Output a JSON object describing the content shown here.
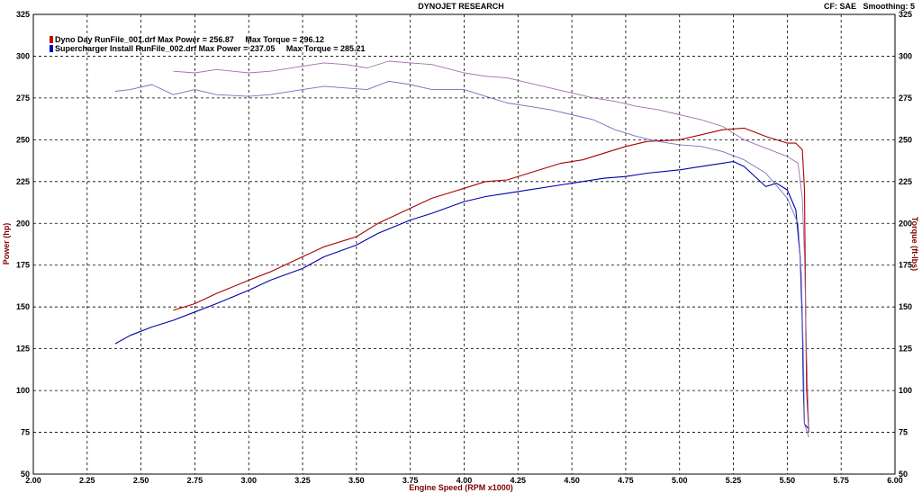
{
  "chart_data": {
    "type": "line",
    "title": "DYNOJET RESEARCH",
    "header_right": "CF: SAE   Smoothing: 5",
    "xlabel": "Engine Speed (RPM x1000)",
    "ylabel_left": "Power (hp)",
    "ylabel_right": "Torque (ft-lbs)",
    "xlim": [
      2.0,
      6.0
    ],
    "ylim": [
      50,
      325
    ],
    "x_ticks": [
      "2.00",
      "2.25",
      "2.50",
      "2.75",
      "3.00",
      "3.25",
      "3.50",
      "3.75",
      "4.00",
      "4.25",
      "4.50",
      "4.75",
      "5.00",
      "5.25",
      "5.50",
      "5.75",
      "6.00"
    ],
    "y_ticks": [
      "50",
      "75",
      "100",
      "125",
      "150",
      "175",
      "200",
      "225",
      "250",
      "275",
      "300",
      "325"
    ],
    "grid": true,
    "legend": [
      {
        "text": "Dyno Day RunFile_001.drf Max Power = 256.87     Max Torque = 296.12",
        "color": "#cc0000"
      },
      {
        "text": "Supercharger Install RunFile_002.drf Max Power = 237.05     Max Torque = 285.21",
        "color": "#0000cc"
      }
    ],
    "series": [
      {
        "color": "#aa0000",
        "kind": "power",
        "x": [
          2.65,
          2.75,
          2.85,
          3.0,
          3.1,
          3.25,
          3.35,
          3.5,
          3.6,
          3.75,
          3.85,
          4.0,
          4.1,
          4.2,
          4.3,
          4.45,
          4.55,
          4.65,
          4.75,
          4.85,
          5.0,
          5.1,
          5.2,
          5.3,
          5.4,
          5.5,
          5.54,
          5.57,
          5.58,
          5.585,
          5.59,
          5.6
        ],
        "y": [
          148,
          152,
          158,
          166,
          171,
          180,
          186,
          192,
          200,
          209,
          215,
          221,
          225,
          226,
          230,
          236,
          238,
          242,
          246,
          249,
          250,
          253,
          256,
          257,
          252,
          248,
          248,
          244,
          220,
          150,
          100,
          75
        ]
      },
      {
        "color": "#0000aa",
        "kind": "power",
        "x": [
          2.38,
          2.45,
          2.55,
          2.65,
          2.75,
          2.85,
          3.0,
          3.1,
          3.25,
          3.35,
          3.5,
          3.6,
          3.75,
          3.85,
          4.0,
          4.1,
          4.2,
          4.3,
          4.45,
          4.55,
          4.65,
          4.75,
          4.85,
          5.0,
          5.1,
          5.2,
          5.25,
          5.3,
          5.4,
          5.45,
          5.5,
          5.54,
          5.56,
          5.57,
          5.575,
          5.58,
          5.6
        ],
        "y": [
          128,
          133,
          138,
          142,
          147,
          152,
          160,
          166,
          173,
          180,
          187,
          194,
          202,
          206,
          213,
          216,
          218,
          220,
          223,
          225,
          227,
          228,
          230,
          232,
          234,
          236,
          237,
          234,
          222,
          224,
          220,
          208,
          180,
          140,
          100,
          80,
          77
        ]
      },
      {
        "color": "#a070a8",
        "kind": "torque",
        "x": [
          2.65,
          2.75,
          2.85,
          3.0,
          3.1,
          3.25,
          3.35,
          3.45,
          3.55,
          3.65,
          3.75,
          3.85,
          4.0,
          4.1,
          4.2,
          4.3,
          4.4,
          4.5,
          4.6,
          4.7,
          4.8,
          4.9,
          5.0,
          5.1,
          5.2,
          5.3,
          5.4,
          5.5,
          5.55,
          5.57,
          5.58,
          5.59,
          5.6
        ],
        "y": [
          291,
          290,
          292,
          290,
          291,
          294,
          296,
          295,
          293,
          297,
          296,
          295,
          290,
          288,
          287,
          284,
          281,
          278,
          275,
          273,
          270,
          268,
          265,
          262,
          258,
          250,
          245,
          240,
          236,
          215,
          180,
          120,
          76
        ]
      },
      {
        "color": "#7070c0",
        "kind": "torque",
        "x": [
          2.38,
          2.45,
          2.55,
          2.65,
          2.75,
          2.85,
          3.0,
          3.1,
          3.25,
          3.35,
          3.45,
          3.55,
          3.65,
          3.75,
          3.85,
          4.0,
          4.1,
          4.2,
          4.3,
          4.4,
          4.5,
          4.6,
          4.7,
          4.8,
          4.9,
          5.0,
          5.1,
          5.2,
          5.3,
          5.4,
          5.5,
          5.55,
          5.565,
          5.575,
          5.58,
          5.6
        ],
        "y": [
          279,
          280,
          283,
          277,
          280,
          277,
          276,
          277,
          280,
          282,
          281,
          280,
          285,
          283,
          280,
          280,
          276,
          272,
          270,
          268,
          265,
          262,
          256,
          252,
          249,
          247,
          246,
          243,
          238,
          230,
          215,
          200,
          170,
          120,
          80,
          72
        ]
      }
    ]
  }
}
